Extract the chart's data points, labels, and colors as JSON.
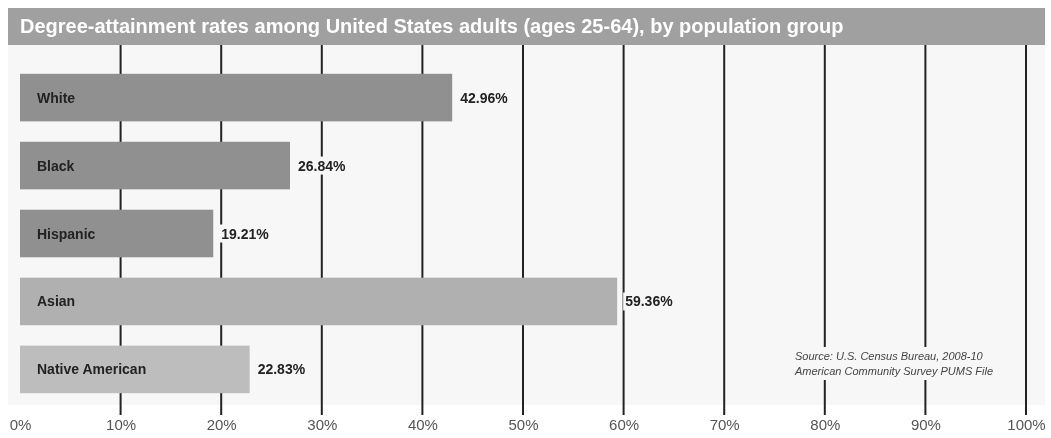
{
  "chart_data": {
    "type": "bar",
    "orientation": "horizontal",
    "title": "Degree-attainment rates among United States adults (ages 25-64), by population group",
    "categories": [
      "White",
      "Black",
      "Hispanic",
      "Asian",
      "Native American"
    ],
    "values": [
      42.96,
      26.84,
      19.21,
      59.36,
      22.83
    ],
    "colors": [
      "#909090",
      "#909090",
      "#909090",
      "#b0b0b0",
      "#bdbdbd"
    ],
    "value_labels": [
      "42.96%",
      "26.84%",
      "19.21%",
      "59.36%",
      "22.83%"
    ],
    "xlim": [
      0,
      100
    ],
    "xticks": [
      {
        "value": 0,
        "label": "0%"
      },
      {
        "value": 10,
        "label": "10%"
      },
      {
        "value": 20,
        "label": "20%"
      },
      {
        "value": 30,
        "label": "30%"
      },
      {
        "value": 40,
        "label": "40%"
      },
      {
        "value": 50,
        "label": "50%"
      },
      {
        "value": 60,
        "label": "60%"
      },
      {
        "value": 70,
        "label": "70%"
      },
      {
        "value": 80,
        "label": "80%"
      },
      {
        "value": 90,
        "label": "90%"
      },
      {
        "value": 100,
        "label": "100%"
      }
    ],
    "grid": "x",
    "annotations": [
      "Source: U.S. Census Bureau, 2008-10 American Community Survey PUMS File"
    ]
  }
}
